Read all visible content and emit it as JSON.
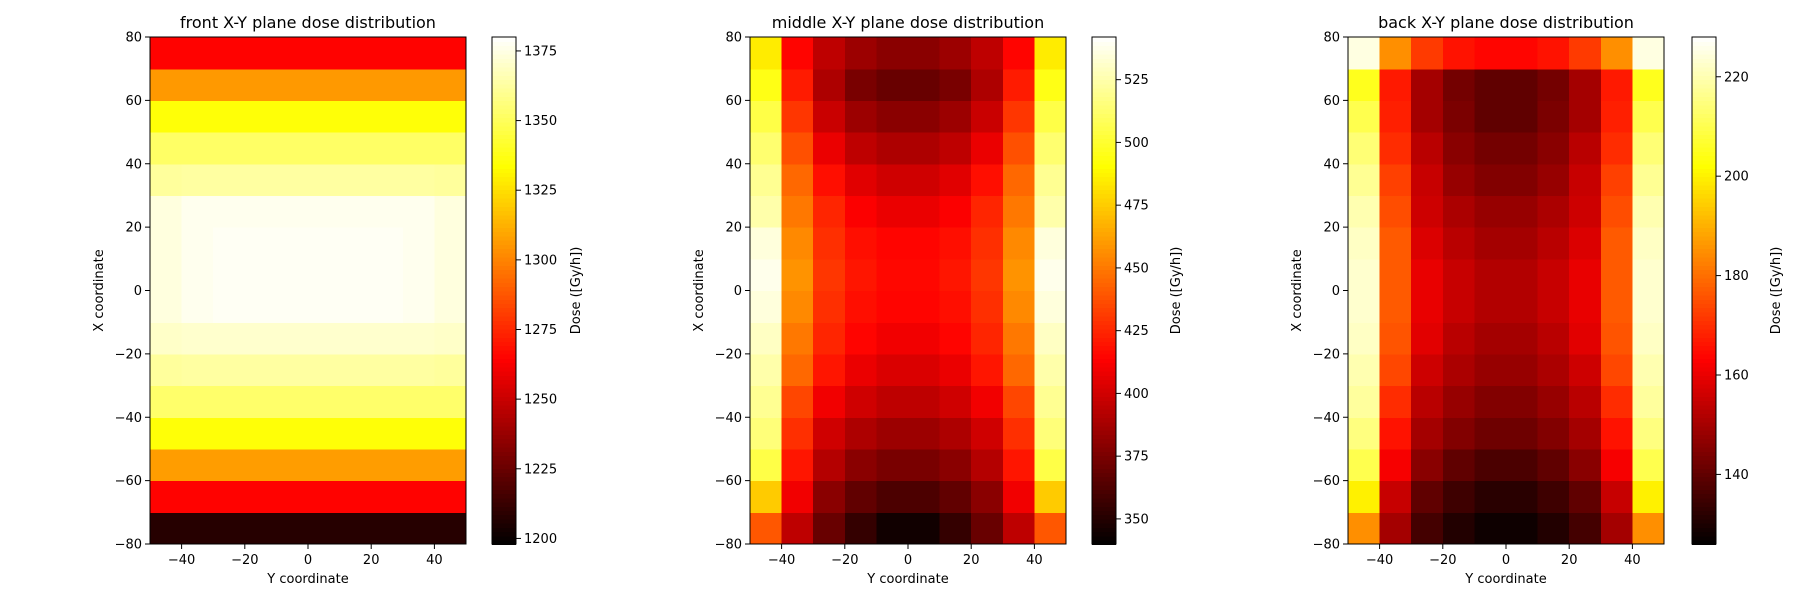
{
  "chart_data": [
    {
      "type": "heatmap",
      "title": "front X-Y plane dose distribution",
      "xlabel": "Y coordinate",
      "ylabel": "X coordinate",
      "xlim": [
        -50,
        50
      ],
      "ylim": [
        -80,
        80
      ],
      "xticks": [
        -40,
        -20,
        0,
        20,
        40
      ],
      "yticks": [
        -80,
        -60,
        -40,
        -20,
        0,
        20,
        40,
        60,
        80
      ],
      "x_edges": [
        -50,
        -40,
        -30,
        -20,
        -10,
        0,
        10,
        20,
        30,
        40,
        50
      ],
      "y_edges": [
        -80,
        -70,
        -60,
        -50,
        -40,
        -30,
        -20,
        -10,
        0,
        10,
        20,
        30,
        40,
        50,
        60,
        70,
        80
      ],
      "rows_from_bottom": [
        [
          1208,
          1208,
          1208,
          1208,
          1208,
          1208,
          1208,
          1208,
          1208,
          1208
        ],
        [
          1265,
          1265,
          1265,
          1265,
          1265,
          1265,
          1265,
          1265,
          1265,
          1265
        ],
        [
          1307,
          1307,
          1307,
          1307,
          1307,
          1307,
          1307,
          1307,
          1307,
          1307
        ],
        [
          1335,
          1335,
          1335,
          1335,
          1335,
          1335,
          1335,
          1335,
          1335,
          1335
        ],
        [
          1353,
          1353,
          1353,
          1353,
          1353,
          1353,
          1353,
          1353,
          1353,
          1353
        ],
        [
          1362,
          1363,
          1363,
          1363,
          1363,
          1363,
          1363,
          1363,
          1363,
          1362
        ],
        [
          1370,
          1371,
          1371,
          1371,
          1371,
          1371,
          1371,
          1371,
          1371,
          1370
        ],
        [
          1374,
          1377,
          1378,
          1378,
          1378,
          1378,
          1378,
          1378,
          1377,
          1374
        ],
        [
          1374,
          1377,
          1378,
          1378,
          1378,
          1378,
          1378,
          1378,
          1377,
          1374
        ],
        [
          1374,
          1377,
          1378,
          1378,
          1378,
          1378,
          1378,
          1378,
          1377,
          1374
        ],
        [
          1374,
          1377,
          1377,
          1377,
          1377,
          1377,
          1377,
          1377,
          1377,
          1374
        ],
        [
          1362,
          1363,
          1363,
          1363,
          1363,
          1363,
          1363,
          1363,
          1363,
          1362
        ],
        [
          1352,
          1352,
          1352,
          1352,
          1352,
          1352,
          1352,
          1352,
          1352,
          1352
        ],
        [
          1335,
          1335,
          1335,
          1335,
          1335,
          1335,
          1335,
          1335,
          1335,
          1335
        ],
        [
          1306,
          1306,
          1306,
          1306,
          1306,
          1306,
          1306,
          1306,
          1306,
          1306
        ],
        [
          1265,
          1265,
          1265,
          1265,
          1265,
          1265,
          1265,
          1265,
          1265,
          1265
        ]
      ],
      "colorbar": {
        "label": "Dose ([Gy/h])",
        "vmin": 1198,
        "vmax": 1380,
        "ticks": [
          1200,
          1225,
          1250,
          1275,
          1300,
          1325,
          1350,
          1375
        ]
      },
      "colormap": "hot"
    },
    {
      "type": "heatmap",
      "title": "middle X-Y plane dose distribution",
      "xlabel": "Y coordinate",
      "ylabel": "X coordinate",
      "xlim": [
        -50,
        50
      ],
      "ylim": [
        -80,
        80
      ],
      "xticks": [
        -40,
        -20,
        0,
        20,
        40
      ],
      "yticks": [
        -80,
        -60,
        -40,
        -20,
        0,
        20,
        40,
        60,
        80
      ],
      "x_edges": [
        -50,
        -40,
        -30,
        -20,
        -10,
        0,
        10,
        20,
        30,
        40,
        50
      ],
      "y_edges": [
        -80,
        -70,
        -60,
        -50,
        -40,
        -30,
        -20,
        -10,
        0,
        10,
        20,
        30,
        40,
        50,
        60,
        70,
        80
      ],
      "rows_from_bottom": [
        [
          440,
          395,
          370,
          355,
          345,
          345,
          355,
          370,
          395,
          440
        ],
        [
          475,
          410,
          380,
          368,
          362,
          362,
          368,
          380,
          410,
          475
        ],
        [
          505,
          420,
          392,
          380,
          375,
          375,
          380,
          392,
          420,
          505
        ],
        [
          515,
          428,
          400,
          390,
          385,
          385,
          390,
          400,
          428,
          515
        ],
        [
          520,
          435,
          410,
          400,
          395,
          395,
          400,
          410,
          435,
          520
        ],
        [
          525,
          445,
          420,
          408,
          403,
          403,
          408,
          420,
          445,
          525
        ],
        [
          530,
          450,
          425,
          415,
          410,
          410,
          415,
          425,
          450,
          530
        ],
        [
          535,
          455,
          428,
          418,
          415,
          415,
          418,
          428,
          455,
          535
        ],
        [
          538,
          458,
          430,
          420,
          416,
          416,
          420,
          430,
          458,
          538
        ],
        [
          535,
          455,
          428,
          418,
          415,
          415,
          418,
          428,
          455,
          535
        ],
        [
          525,
          450,
          425,
          413,
          408,
          408,
          413,
          425,
          450,
          525
        ],
        [
          520,
          445,
          418,
          405,
          400,
          400,
          405,
          418,
          445,
          520
        ],
        [
          513,
          438,
          408,
          395,
          390,
          390,
          395,
          408,
          438,
          513
        ],
        [
          505,
          430,
          398,
          385,
          380,
          380,
          385,
          398,
          430,
          505
        ],
        [
          495,
          422,
          390,
          375,
          370,
          370,
          375,
          390,
          422,
          495
        ],
        [
          485,
          415,
          395,
          385,
          380,
          380,
          385,
          395,
          415,
          485
        ]
      ],
      "colorbar": {
        "label": "Dose ([Gy/h])",
        "vmin": 340,
        "vmax": 542,
        "ticks": [
          350,
          375,
          400,
          425,
          450,
          475,
          500,
          525
        ]
      },
      "colormap": "hot"
    },
    {
      "type": "heatmap",
      "title": "back X-Y plane dose distribution",
      "xlabel": "Y coordinate",
      "ylabel": "X coordinate",
      "xlim": [
        -50,
        50
      ],
      "ylim": [
        -80,
        80
      ],
      "xticks": [
        -40,
        -20,
        0,
        20,
        40
      ],
      "yticks": [
        -80,
        -60,
        -40,
        -20,
        0,
        20,
        40,
        60,
        80
      ],
      "x_edges": [
        -50,
        -40,
        -30,
        -20,
        -10,
        0,
        10,
        20,
        30,
        40,
        50
      ],
      "y_edges": [
        -80,
        -70,
        -60,
        -50,
        -40,
        -30,
        -20,
        -10,
        0,
        10,
        20,
        30,
        40,
        50,
        60,
        70,
        80
      ],
      "rows_from_bottom": [
        [
          185,
          150,
          136,
          131,
          128,
          128,
          131,
          136,
          150,
          185
        ],
        [
          200,
          155,
          140,
          135,
          132,
          132,
          135,
          140,
          155,
          200
        ],
        [
          210,
          162,
          146,
          140,
          137,
          137,
          140,
          146,
          162,
          210
        ],
        [
          215,
          166,
          150,
          145,
          142,
          142,
          145,
          150,
          166,
          215
        ],
        [
          218,
          170,
          153,
          148,
          145,
          145,
          148,
          153,
          170,
          218
        ],
        [
          220,
          174,
          156,
          151,
          148,
          148,
          151,
          156,
          174,
          220
        ],
        [
          222,
          176,
          159,
          153,
          150,
          150,
          153,
          159,
          176,
          222
        ],
        [
          223,
          177,
          160,
          155,
          152,
          152,
          155,
          160,
          177,
          223
        ],
        [
          223,
          177,
          160,
          155,
          152,
          152,
          155,
          160,
          177,
          223
        ],
        [
          222,
          177,
          158,
          153,
          150,
          150,
          153,
          158,
          177,
          222
        ],
        [
          220,
          175,
          156,
          151,
          148,
          148,
          151,
          156,
          175,
          220
        ],
        [
          217,
          173,
          155,
          148,
          145,
          145,
          148,
          155,
          173,
          217
        ],
        [
          214,
          170,
          153,
          146,
          143,
          143,
          146,
          153,
          170,
          214
        ],
        [
          210,
          168,
          150,
          144,
          140,
          140,
          144,
          150,
          168,
          210
        ],
        [
          205,
          167,
          150,
          143,
          140,
          140,
          143,
          150,
          167,
          205
        ],
        [
          225,
          185,
          172,
          166,
          164,
          164,
          166,
          172,
          185,
          225
        ]
      ],
      "colorbar": {
        "label": "Dose ([Gy/h])",
        "vmin": 126,
        "vmax": 228,
        "ticks": [
          140,
          160,
          180,
          200,
          220
        ]
      },
      "colormap": "hot"
    }
  ]
}
